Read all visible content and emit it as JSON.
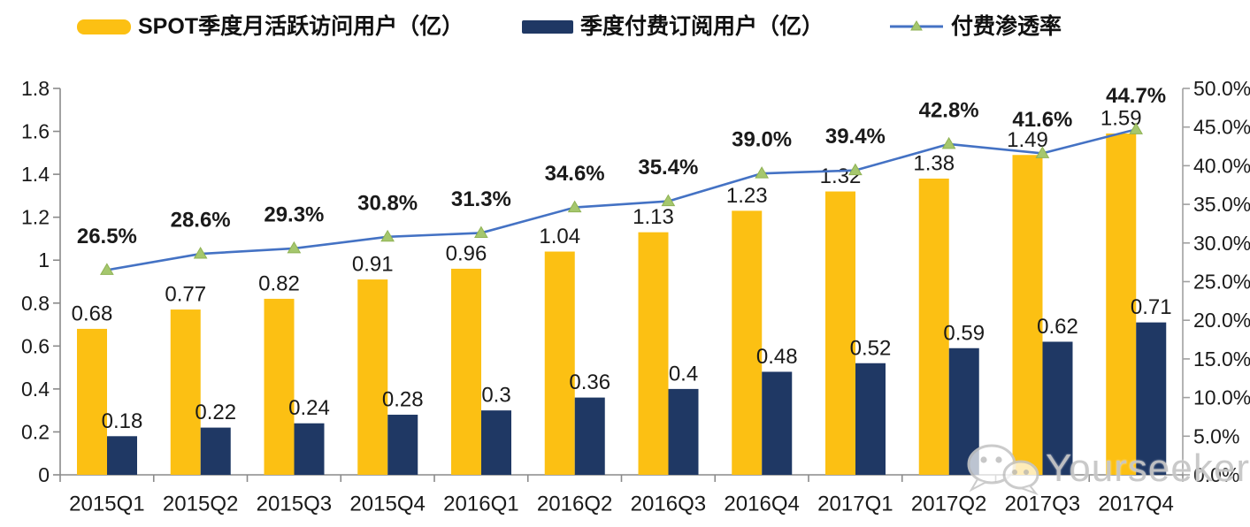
{
  "chart_data": {
    "type": "bar",
    "title": "",
    "categories": [
      "2015Q1",
      "2015Q2",
      "2015Q3",
      "2015Q4",
      "2016Q1",
      "2016Q2",
      "2016Q3",
      "2016Q4",
      "2017Q1",
      "2017Q2",
      "2017Q3",
      "2017Q4"
    ],
    "series": [
      {
        "name": "SPOT季度月活跃访问用户（亿）",
        "type": "bar",
        "axis": "left",
        "color": "#FCC013",
        "values": [
          0.68,
          0.77,
          0.82,
          0.91,
          0.96,
          1.04,
          1.13,
          1.23,
          1.32,
          1.38,
          1.49,
          1.59
        ],
        "labels": [
          "0.68",
          "0.77",
          "0.82",
          "0.91",
          "0.96",
          "1.04",
          "1.13",
          "1.23",
          "1.32",
          "1.38",
          "1.49",
          "1.59"
        ]
      },
      {
        "name": "季度付费订阅用户（亿）",
        "type": "bar",
        "axis": "left",
        "color": "#1F3864",
        "values": [
          0.18,
          0.22,
          0.24,
          0.28,
          0.3,
          0.36,
          0.4,
          0.48,
          0.52,
          0.59,
          0.62,
          0.71
        ],
        "labels": [
          "0.18",
          "0.22",
          "0.24",
          "0.28",
          "0.3",
          "0.36",
          "0.4",
          "0.48",
          "0.52",
          "0.59",
          "0.62",
          "0.71"
        ]
      },
      {
        "name": "付费渗透率",
        "type": "line",
        "axis": "right",
        "color": "#4472C4",
        "marker": "triangle-up",
        "marker_color": "#A5C76D",
        "marker_edge": "#8FB254",
        "values": [
          26.5,
          28.6,
          29.3,
          30.8,
          31.3,
          34.6,
          35.4,
          39.0,
          39.4,
          42.8,
          41.6,
          44.7
        ],
        "labels": [
          "26.5%",
          "28.6%",
          "29.3%",
          "30.8%",
          "31.3%",
          "34.6%",
          "35.4%",
          "39.0%",
          "39.4%",
          "42.8%",
          "41.6%",
          "44.7%"
        ]
      }
    ],
    "left_axis": {
      "min": 0,
      "max": 1.8,
      "step": 0.2,
      "ticks": [
        "0",
        "0.2",
        "0.4",
        "0.6",
        "0.8",
        "1",
        "1.2",
        "1.4",
        "1.6",
        "1.8"
      ]
    },
    "right_axis": {
      "min": 0,
      "max": 50,
      "step": 5,
      "ticks": [
        "0.0%",
        "5.0%",
        "10.0%",
        "15.0%",
        "20.0%",
        "25.0%",
        "30.0%",
        "35.0%",
        "40.0%",
        "45.0%",
        "50.0%"
      ]
    },
    "grid": false,
    "legend_position": "top"
  },
  "watermark": {
    "text": "Yourseeker",
    "icon": "wechat-icon"
  }
}
